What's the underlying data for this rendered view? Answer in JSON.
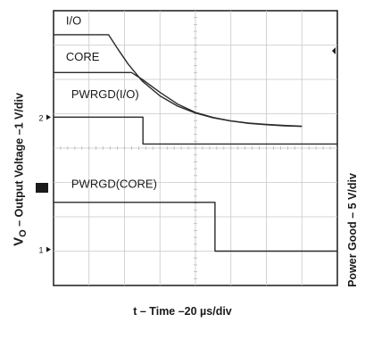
{
  "chart_data": {
    "type": "line",
    "title": "",
    "xlabel": "t – Time –20 µs/div",
    "ylabel_left": {
      "prefix": "V",
      "subscript": "O",
      "rest": " – Output Voltage –1 V/div"
    },
    "ylabel_right": "Power Good – 5 V/div",
    "x_divisions": 8,
    "y_divisions": 8,
    "grid": true,
    "ground_markers": [
      {
        "label": "2",
        "y_div": 4.9
      },
      {
        "label": "1",
        "y_div": 1.05
      }
    ],
    "series": [
      {
        "name": "I/O",
        "label_pos": [
          0.35,
          7.6
        ],
        "points": [
          [
            0,
            7.3
          ],
          [
            1.55,
            7.3
          ],
          [
            1.8,
            6.9
          ],
          [
            2.1,
            6.45
          ],
          [
            2.5,
            5.95
          ],
          [
            3.0,
            5.52
          ],
          [
            3.5,
            5.22
          ],
          [
            4.0,
            5.02
          ],
          [
            4.5,
            4.88
          ],
          [
            5.0,
            4.79
          ],
          [
            5.5,
            4.73
          ],
          [
            6.0,
            4.69
          ],
          [
            6.5,
            4.66
          ],
          [
            7.0,
            4.64
          ]
        ]
      },
      {
        "name": "CORE",
        "label_pos": [
          0.35,
          6.55
        ],
        "points": [
          [
            0,
            6.2
          ],
          [
            2.2,
            6.2
          ],
          [
            2.5,
            6.0
          ],
          [
            3.0,
            5.62
          ],
          [
            3.5,
            5.28
          ],
          [
            4.0,
            5.04
          ],
          [
            4.5,
            4.89
          ],
          [
            5.0,
            4.79
          ],
          [
            5.5,
            4.72
          ],
          [
            6.0,
            4.68
          ],
          [
            6.5,
            4.65
          ],
          [
            7.0,
            4.63
          ]
        ]
      },
      {
        "name": "PWRGD(I/O)",
        "label_pos": [
          0.5,
          5.45
        ],
        "points": [
          [
            0,
            4.9
          ],
          [
            2.52,
            4.9
          ],
          [
            2.52,
            4.12
          ],
          [
            8,
            4.12
          ]
        ]
      },
      {
        "name": "PWRGD(CORE)",
        "label_pos": [
          0.5,
          2.85
        ],
        "points": [
          [
            0,
            2.42
          ],
          [
            4.55,
            2.42
          ],
          [
            4.55,
            1.0
          ],
          [
            8,
            1.0
          ]
        ]
      }
    ]
  }
}
